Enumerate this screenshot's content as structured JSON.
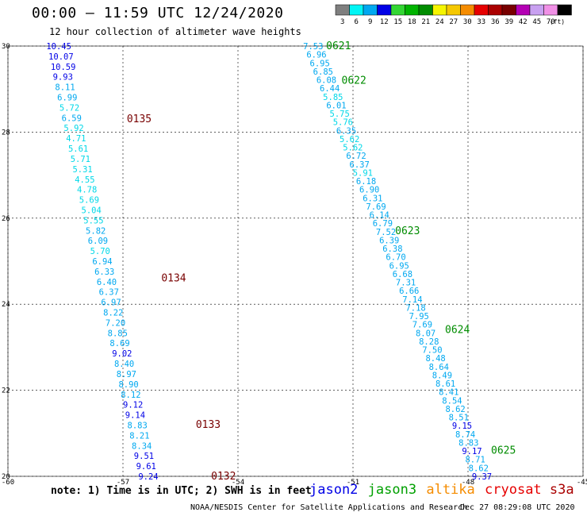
{
  "header": {
    "title": "00:00 – 11:59 UTC 12/24/2020",
    "subtitle": "12 hour collection of altimeter wave heights"
  },
  "legend": {
    "unit": "(ft)",
    "bins": [
      {
        "label": "3",
        "color": "#7f7f7f"
      },
      {
        "label": "6",
        "color": "#00f5f5"
      },
      {
        "label": "9",
        "color": "#00a8f0"
      },
      {
        "label": "12",
        "color": "#0000e6"
      },
      {
        "label": "15",
        "color": "#33d633"
      },
      {
        "label": "18",
        "color": "#00b400"
      },
      {
        "label": "21",
        "color": "#008c00"
      },
      {
        "label": "24",
        "color": "#f5f500"
      },
      {
        "label": "27",
        "color": "#f5c800"
      },
      {
        "label": "30",
        "color": "#f58c00"
      },
      {
        "label": "33",
        "color": "#e60000"
      },
      {
        "label": "36",
        "color": "#aa0000"
      },
      {
        "label": "39",
        "color": "#780000"
      },
      {
        "label": "42",
        "color": "#b400b4"
      },
      {
        "label": "45",
        "color": "#c8a0f0"
      },
      {
        "label": "70",
        "color": "#f090e6"
      },
      {
        "label": "",
        "color": "#000000"
      }
    ]
  },
  "map": {
    "lon_range": [
      -60,
      -45
    ],
    "lat_range": [
      20,
      30
    ],
    "lon_ticks": [
      "-60",
      "-57",
      "-54",
      "-51",
      "-48",
      "-45"
    ],
    "lat_ticks": [
      "30",
      "28",
      "26",
      "24",
      "22",
      "20"
    ]
  },
  "tracks": [
    {
      "values": [
        "10.45",
        "10.07",
        "10.59",
        "9.93",
        "8.11",
        "6.99",
        "5.72",
        "6.59",
        "5.92",
        "4.71",
        "5.61",
        "5.71",
        "5.31",
        "4.55",
        "4.78",
        "5.69",
        "5.04",
        "5.55",
        "5.82",
        "6.09",
        "5.70",
        "6.94",
        "6.33",
        "6.40",
        "6.37",
        "6.97",
        "8.22",
        "7.20",
        "8.85",
        "8.69",
        "9.02",
        "8.40",
        "8.97",
        "8.90",
        "8.12",
        "9.12",
        "9.14",
        "8.83",
        "8.21",
        "8.34",
        "9.51",
        "9.61",
        "9.24"
      ],
      "colors": [
        "#0000e6",
        "#0000e6",
        "#0000e6",
        "#0000e6",
        "#00a8f0",
        "#00a8f0",
        "#00d8e8",
        "#00a8f0",
        "#00d8e8",
        "#00d8e8",
        "#00d8e8",
        "#00d8e8",
        "#00d8e8",
        "#00d8e8",
        "#00d8e8",
        "#00d8e8",
        "#00d8e8",
        "#00d8e8",
        "#00a8f0",
        "#00a8f0",
        "#00d8e8",
        "#00a8f0",
        "#00a8f0",
        "#00a8f0",
        "#00a8f0",
        "#00a8f0",
        "#00a8f0",
        "#00a8f0",
        "#00a8f0",
        "#00a8f0",
        "#0000e6",
        "#00a8f0",
        "#00a8f0",
        "#00a8f0",
        "#00a8f0",
        "#0000e6",
        "#0000e6",
        "#00a8f0",
        "#00a8f0",
        "#00a8f0",
        "#0000e6",
        "#0000e6",
        "#0000e6"
      ],
      "lon_top": -59.0,
      "lat_top": 30.0,
      "lon_bottom": -56.6,
      "lat_bottom": 20.0,
      "times": [
        {
          "label": "0135",
          "lon": -56.9,
          "lat": 28.3,
          "color": "#780000"
        },
        {
          "label": "0134",
          "lon": -56.0,
          "lat": 24.6,
          "color": "#780000"
        },
        {
          "label": "0133",
          "lon": -55.1,
          "lat": 21.2,
          "color": "#780000"
        },
        {
          "label": "0132",
          "lon": -54.7,
          "lat": 20.0,
          "color": "#780000"
        }
      ]
    },
    {
      "values": [
        "7.53",
        "6.96",
        "6.95",
        "6.85",
        "6.08",
        "6.44",
        "5.85",
        "6.01",
        "5.75",
        "5.76",
        "6.35",
        "5.62",
        "5.62",
        "6.72",
        "6.37",
        "5.91",
        "6.18",
        "6.90",
        "6.31",
        "7.69",
        "6.14",
        "6.79",
        "7.52",
        "6.39",
        "6.38",
        "6.70",
        "6.95",
        "6.68",
        "7.31",
        "6.66",
        "7.14",
        "7.18",
        "7.95",
        "7.69",
        "8.07",
        "8.28",
        "7.50",
        "8.48",
        "8.64",
        "8.49",
        "8.61",
        "8.41",
        "8.54",
        "8.62",
        "8.51",
        "9.15",
        "8.74",
        "8.83",
        "9.17",
        "8.71",
        "8.62",
        "9.37"
      ],
      "colors": [
        "#00a8f0",
        "#00a8f0",
        "#00a8f0",
        "#00a8f0",
        "#00a8f0",
        "#00a8f0",
        "#00d8e8",
        "#00a8f0",
        "#00d8e8",
        "#00d8e8",
        "#00a8f0",
        "#00d8e8",
        "#00d8e8",
        "#00a8f0",
        "#00a8f0",
        "#00d8e8",
        "#00a8f0",
        "#00a8f0",
        "#00a8f0",
        "#00a8f0",
        "#00a8f0",
        "#00a8f0",
        "#00a8f0",
        "#00a8f0",
        "#00a8f0",
        "#00a8f0",
        "#00a8f0",
        "#00a8f0",
        "#00a8f0",
        "#00a8f0",
        "#00a8f0",
        "#00a8f0",
        "#00a8f0",
        "#00a8f0",
        "#00a8f0",
        "#00a8f0",
        "#00a8f0",
        "#00a8f0",
        "#00a8f0",
        "#00a8f0",
        "#00a8f0",
        "#00a8f0",
        "#00a8f0",
        "#00a8f0",
        "#00a8f0",
        "#0000e6",
        "#00a8f0",
        "#00a8f0",
        "#0000e6",
        "#00a8f0",
        "#00a8f0",
        "#0000e6"
      ],
      "lon_top": -52.3,
      "lat_top": 30.0,
      "lon_bottom": -47.9,
      "lat_bottom": 20.0,
      "times": [
        {
          "label": "0621",
          "lon": -51.7,
          "lat": 30.0,
          "color": "#008c00"
        },
        {
          "label": "0622",
          "lon": -51.3,
          "lat": 29.2,
          "color": "#008c00"
        },
        {
          "label": "0623",
          "lon": -49.9,
          "lat": 25.7,
          "color": "#008c00"
        },
        {
          "label": "0624",
          "lon": -48.6,
          "lat": 23.4,
          "color": "#008c00"
        },
        {
          "label": "0625",
          "lon": -47.4,
          "lat": 20.6,
          "color": "#008c00"
        }
      ]
    }
  ],
  "note": "note: 1) Time is in UTC; 2) SWH is in feet",
  "satellites": [
    {
      "name": "jason2",
      "color": "#0000e6"
    },
    {
      "name": "jason3",
      "color": "#00a000"
    },
    {
      "name": "altika",
      "color": "#f58c00"
    },
    {
      "name": "cryosat",
      "color": "#e60000"
    },
    {
      "name": "s3a",
      "color": "#aa0000"
    }
  ],
  "footer": {
    "credit": "NOAA/NESDIS Center for Satellite Applications and Research",
    "timestamp": "Dec 27 08:29:08 UTC 2020"
  }
}
